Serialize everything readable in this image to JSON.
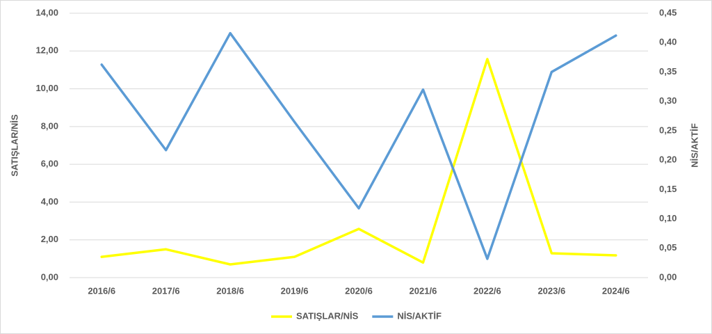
{
  "chart_data": {
    "type": "line",
    "categories": [
      "2016/6",
      "2017/6",
      "2018/6",
      "2019/6",
      "2020/6",
      "2021/6",
      "2022/6",
      "2023/6",
      "2024/6"
    ],
    "ylabel": "SATIŞLAR/NİS",
    "y2label": "NİS/AKTİF",
    "series": [
      {
        "name": "SATIŞLAR/NİS",
        "color": "#ffff00",
        "values": [
          1.1,
          1.5,
          0.7,
          1.1,
          2.58,
          0.8,
          11.57,
          1.29,
          1.18
        ]
      },
      {
        "name": "NİS/AKTİF",
        "color": "#5b9bd5",
        "axis": "y2",
        "values": [
          0.3625,
          0.217,
          0.416,
          0.265,
          0.118,
          0.32,
          0.032,
          0.35,
          0.412
        ]
      }
    ],
    "ylim": [
      0,
      14
    ],
    "yticks": [
      {
        "value": 0,
        "label": "0,00"
      },
      {
        "value": 2,
        "label": "2,00"
      },
      {
        "value": 4,
        "label": "4,00"
      },
      {
        "value": 6,
        "label": "6,00"
      },
      {
        "value": 8,
        "label": "8,00"
      },
      {
        "value": 10,
        "label": "10,00"
      },
      {
        "value": 12,
        "label": "12,00"
      },
      {
        "value": 14,
        "label": "14,00"
      }
    ],
    "y2lim": [
      0,
      0.45
    ],
    "y2ticks": [
      {
        "value": 0,
        "label": "0,00"
      },
      {
        "value": 0.05,
        "label": "0,05"
      },
      {
        "value": 0.1,
        "label": "0,10"
      },
      {
        "value": 0.15,
        "label": "0,15"
      },
      {
        "value": 0.2,
        "label": "0,20"
      },
      {
        "value": 0.25,
        "label": "0,25"
      },
      {
        "value": 0.3,
        "label": "0,30"
      },
      {
        "value": 0.35,
        "label": "0,35"
      },
      {
        "value": 0.4,
        "label": "0,40"
      },
      {
        "value": 0.45,
        "label": "0,45"
      }
    ],
    "grid": true,
    "legend": "bottom"
  }
}
